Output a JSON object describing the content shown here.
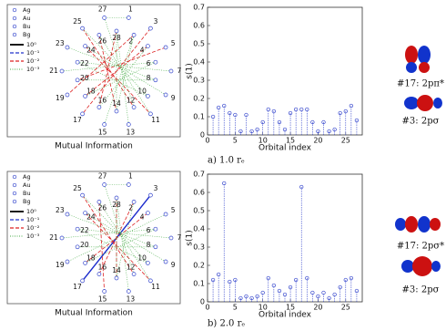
{
  "chart_data": [
    {
      "type": "network",
      "title": "Mutual Information",
      "legend": {
        "symmetries": [
          "Ag",
          "Au",
          "Bu",
          "Bg"
        ],
        "levels": [
          {
            "value": 1,
            "label": "10⁰",
            "color": "#000000"
          },
          {
            "value": 0.1,
            "label": "10⁻¹",
            "color": "#2233cc"
          },
          {
            "value": 0.01,
            "label": "10⁻²",
            "color": "#dd2222"
          },
          {
            "value": 0.001,
            "label": "10⁻³",
            "color": "#44aa44"
          }
        ]
      },
      "nodes": [
        "1",
        "2",
        "3",
        "4",
        "5",
        "6",
        "7",
        "8",
        "9",
        "10",
        "11",
        "12",
        "13",
        "14",
        "15",
        "16",
        "17",
        "18",
        "19",
        "20",
        "21",
        "22",
        "23",
        "24",
        "25",
        "26",
        "27",
        "28"
      ],
      "edges": [
        {
          "from": 24,
          "to": 11,
          "value": 0.01
        },
        {
          "from": 23,
          "to": 10,
          "value": 0.01
        },
        {
          "from": 25,
          "to": 13,
          "value": 0.01
        },
        {
          "from": 2,
          "to": 16,
          "value": 0.01
        },
        {
          "from": 3,
          "to": 17,
          "value": 0.01
        },
        {
          "from": 27,
          "to": 15,
          "value": 0.01
        },
        {
          "from": 1,
          "to": 18,
          "value": 0.01
        },
        {
          "from": 4,
          "to": 19,
          "value": 0.01
        },
        {
          "from": 0,
          "to": 26,
          "value": 0.001
        },
        {
          "from": 1,
          "to": 13,
          "value": 0.001
        },
        {
          "from": 5,
          "to": 20,
          "value": 0.001
        },
        {
          "from": 6,
          "to": 21,
          "value": 0.001
        },
        {
          "from": 7,
          "to": 22,
          "value": 0.001
        },
        {
          "from": 8,
          "to": 23,
          "value": 0.001
        },
        {
          "from": 9,
          "to": 24,
          "value": 0.001
        },
        {
          "from": 10,
          "to": 25,
          "value": 0.001
        },
        {
          "from": 11,
          "to": 26,
          "value": 0.001
        },
        {
          "from": 12,
          "to": 27,
          "value": 0.001
        },
        {
          "from": 14,
          "to": 1,
          "value": 0.001
        },
        {
          "from": 15,
          "to": 3,
          "value": 0.001
        },
        {
          "from": 17,
          "to": 5,
          "value": 0.001
        },
        {
          "from": 19,
          "to": 7,
          "value": 0.001
        },
        {
          "from": 21,
          "to": 9,
          "value": 0.001
        },
        {
          "from": 13,
          "to": 27,
          "value": 0.001
        }
      ]
    },
    {
      "type": "stem",
      "xlabel": "Orbital index",
      "ylabel": "s(1)",
      "color": "#3344cc",
      "x": [
        1,
        2,
        3,
        4,
        5,
        6,
        7,
        8,
        9,
        10,
        11,
        12,
        13,
        14,
        15,
        16,
        17,
        18,
        19,
        20,
        21,
        22,
        23,
        24,
        25,
        26,
        27
      ],
      "values": [
        0.1,
        0.15,
        0.16,
        0.12,
        0.11,
        0.02,
        0.11,
        0.02,
        0.03,
        0.07,
        0.14,
        0.13,
        0.07,
        0.03,
        0.12,
        0.14,
        0.14,
        0.14,
        0.07,
        0.02,
        0.07,
        0.02,
        0.03,
        0.12,
        0.13,
        0.16,
        0.08
      ],
      "xlim": [
        0,
        28
      ],
      "ylim": [
        0,
        0.7
      ],
      "xticks": [
        0,
        5,
        10,
        15,
        20,
        25
      ],
      "yticks": [
        0,
        0.1,
        0.2,
        0.3,
        0.4,
        0.5,
        0.6,
        0.7
      ]
    },
    {
      "type": "network",
      "title": "Mutual Information",
      "legend": {
        "symmetries": [
          "Ag",
          "Au",
          "Bu",
          "Bg"
        ],
        "levels": [
          {
            "value": 1,
            "label": "10⁰",
            "color": "#000000"
          },
          {
            "value": 0.1,
            "label": "10⁻¹",
            "color": "#2233cc"
          },
          {
            "value": 0.01,
            "label": "10⁻²",
            "color": "#dd2222"
          },
          {
            "value": 0.001,
            "label": "10⁻³",
            "color": "#44aa44"
          }
        ]
      },
      "nodes": [
        "1",
        "2",
        "3",
        "4",
        "5",
        "6",
        "7",
        "8",
        "9",
        "10",
        "11",
        "12",
        "13",
        "14",
        "15",
        "16",
        "17",
        "18",
        "19",
        "20",
        "21",
        "22",
        "23",
        "24",
        "25",
        "26",
        "27",
        "28"
      ],
      "edges": [
        {
          "from": 2,
          "to": 16,
          "value": 1
        },
        {
          "from": 24,
          "to": 11,
          "value": 0.01
        },
        {
          "from": 23,
          "to": 10,
          "value": 0.01
        },
        {
          "from": 1,
          "to": 15,
          "value": 0.01
        },
        {
          "from": 3,
          "to": 17,
          "value": 0.01
        },
        {
          "from": 27,
          "to": 13,
          "value": 0.01
        },
        {
          "from": 25,
          "to": 14,
          "value": 0.01
        },
        {
          "from": 0,
          "to": 26,
          "value": 0.001
        },
        {
          "from": 1,
          "to": 13,
          "value": 0.001
        },
        {
          "from": 5,
          "to": 20,
          "value": 0.001
        },
        {
          "from": 6,
          "to": 21,
          "value": 0.001
        },
        {
          "from": 7,
          "to": 22,
          "value": 0.001
        },
        {
          "from": 8,
          "to": 23,
          "value": 0.001
        },
        {
          "from": 9,
          "to": 24,
          "value": 0.001
        },
        {
          "from": 10,
          "to": 25,
          "value": 0.001
        },
        {
          "from": 11,
          "to": 26,
          "value": 0.001
        },
        {
          "from": 12,
          "to": 27,
          "value": 0.001
        },
        {
          "from": 17,
          "to": 5,
          "value": 0.001
        },
        {
          "from": 19,
          "to": 7,
          "value": 0.001
        },
        {
          "from": 21,
          "to": 9,
          "value": 0.001
        },
        {
          "from": 4,
          "to": 18,
          "value": 0.001
        },
        {
          "from": 13,
          "to": 27,
          "value": 0.001
        }
      ]
    },
    {
      "type": "stem",
      "xlabel": "Orbital index",
      "ylabel": "s(1)",
      "color": "#3344cc",
      "x": [
        1,
        2,
        3,
        4,
        5,
        6,
        7,
        8,
        9,
        10,
        11,
        12,
        13,
        14,
        15,
        16,
        17,
        18,
        19,
        20,
        21,
        22,
        23,
        24,
        25,
        26,
        27
      ],
      "values": [
        0.12,
        0.15,
        0.65,
        0.11,
        0.12,
        0.02,
        0.03,
        0.02,
        0.03,
        0.05,
        0.13,
        0.09,
        0.06,
        0.04,
        0.08,
        0.12,
        0.63,
        0.13,
        0.05,
        0.03,
        0.05,
        0.02,
        0.04,
        0.08,
        0.12,
        0.13,
        0.06
      ],
      "xlim": [
        0,
        28
      ],
      "ylim": [
        0,
        0.7
      ],
      "xticks": [
        0,
        5,
        10,
        15,
        20,
        25
      ],
      "yticks": [
        0,
        0.1,
        0.2,
        0.3,
        0.4,
        0.5,
        0.6,
        0.7
      ]
    }
  ],
  "captions": [
    "a) 1.0 rₑ",
    "b) 2.0 rₑ"
  ],
  "orbital_labels": [
    [
      "#17: 2pπ*",
      "#3: 2pσ"
    ],
    [
      "#17: 2pσ*",
      "#3: 2pσ"
    ]
  ]
}
